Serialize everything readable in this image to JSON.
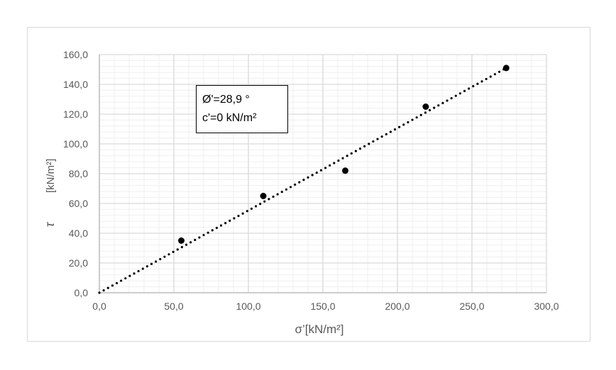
{
  "chart_data": {
    "type": "scatter",
    "title": "",
    "xlabel": "σ’[kN/m²]",
    "ylabel_symbol": "τ",
    "ylabel_unit": "[kN/m²]",
    "xlim": [
      0,
      300
    ],
    "ylim": [
      0,
      160
    ],
    "x_ticks": [
      "0,0",
      "50,0",
      "100,0",
      "150,0",
      "200,0",
      "250,0",
      "300,0"
    ],
    "y_ticks": [
      "0,0",
      "20,0",
      "40,0",
      "60,0",
      "80,0",
      "100,0",
      "120,0",
      "140,0",
      "160,0"
    ],
    "grid": true,
    "points": [
      {
        "x": 55,
        "y": 35
      },
      {
        "x": 110,
        "y": 65
      },
      {
        "x": 165,
        "y": 82
      },
      {
        "x": 219,
        "y": 125
      },
      {
        "x": 273,
        "y": 151
      }
    ],
    "trendline": {
      "style": "dotted",
      "x_start": 0,
      "y_start": 0,
      "x_end": 273,
      "y_end": 151
    },
    "annotation": {
      "line1": "Ø'=28,9 °",
      "line2": "c'=0 kN/m²"
    },
    "colors": {
      "points": "#000000",
      "grid_major": "#d9d9d9",
      "grid_minor": "#efefef",
      "axis": "#bfbfbf",
      "tick_text": "#595959"
    }
  }
}
